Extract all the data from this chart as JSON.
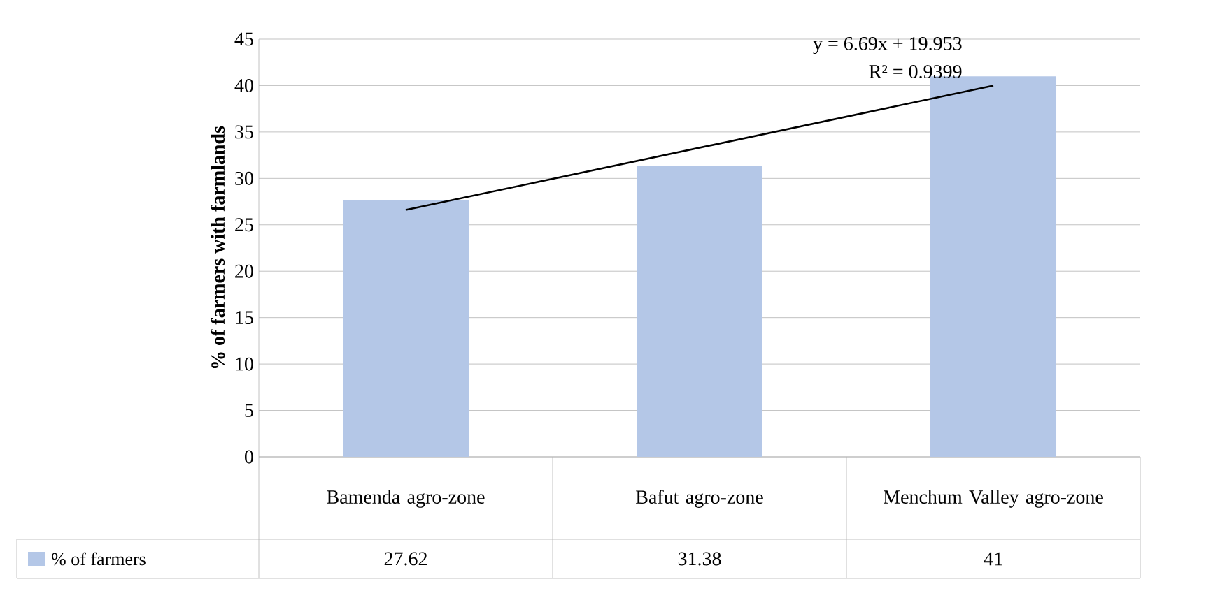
{
  "chart_data": {
    "type": "bar",
    "ylabel": "% of farmers with farmlands",
    "categories": [
      "Bamenda agro-zone",
      "Bafut agro-zone",
      "Menchum Valley agro-zone"
    ],
    "series": [
      {
        "name": "% of farmers",
        "color": "#b4c7e7",
        "values": [
          27.62,
          31.38,
          41
        ],
        "value_labels": [
          "27.62",
          "31.38",
          "41"
        ]
      },
      {
        "type": "line",
        "x": [
          "Bamenda agro-zone",
          "Bafut agro-zone",
          "Menchum Valley agro-zone"
        ],
        "values": [
          26.6,
          33.3,
          40.0
        ],
        "color": "#000000"
      }
    ],
    "ylim": [
      0,
      45
    ],
    "yticks": [
      0,
      5,
      10,
      15,
      20,
      25,
      30,
      35,
      40,
      45
    ],
    "grid": "y",
    "legend": "bottom left",
    "annotations": [
      "y = 6.69x + 19.953",
      "R² = 0.9399"
    ]
  }
}
